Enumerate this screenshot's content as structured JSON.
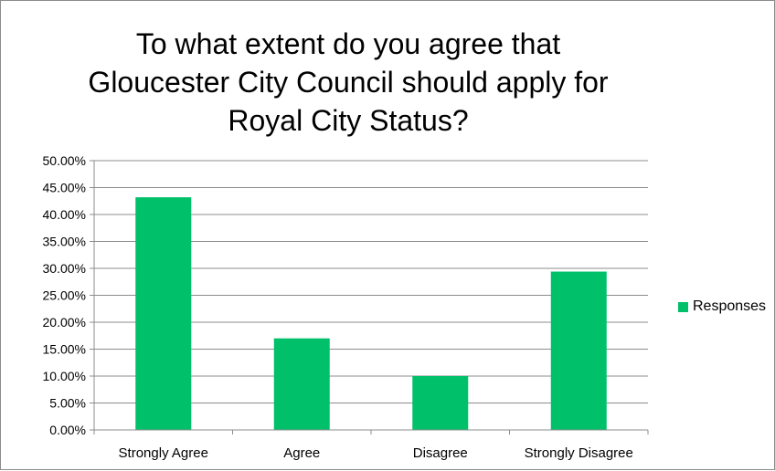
{
  "chart_data": {
    "type": "bar",
    "title": "To what extent do you agree that Gloucester City Council should apply for Royal City Status?",
    "title_lines": [
      "To what extent do you agree that",
      "Gloucester City Council should apply for",
      "Royal City Status?"
    ],
    "categories": [
      "Strongly Agree",
      "Agree",
      "Disagree",
      "Strongly Disagree"
    ],
    "series": [
      {
        "name": "Responses",
        "values": [
          43.2,
          17.0,
          10.0,
          29.4
        ],
        "color": "#00c06a"
      }
    ],
    "ylim": [
      0,
      50
    ],
    "yticks": [
      0,
      5,
      10,
      15,
      20,
      25,
      30,
      35,
      40,
      45,
      50
    ],
    "ytick_labels": [
      "0.00%",
      "5.00%",
      "10.00%",
      "15.00%",
      "20.00%",
      "25.00%",
      "30.00%",
      "35.00%",
      "40.00%",
      "45.00%",
      "50.00%"
    ],
    "grid": true,
    "legend_position": "right",
    "xlabel": "",
    "ylabel": ""
  }
}
